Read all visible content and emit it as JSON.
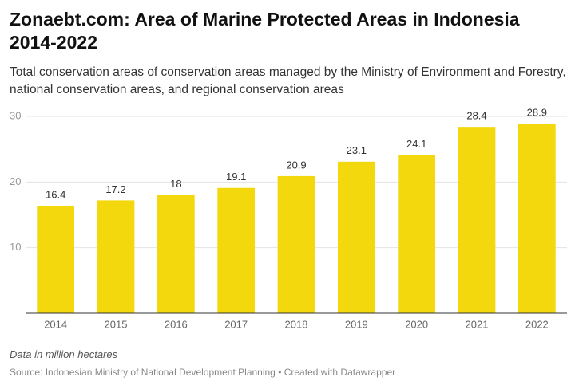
{
  "chart_data": {
    "type": "bar",
    "title": "Zonaebt.com: Area of Marine Protected Areas in Indonesia 2014-2022",
    "subtitle": "Total conservation areas of conservation areas managed by the Ministry of Environment and Forestry, national conservation areas, and regional conservation areas",
    "categories": [
      "2014",
      "2015",
      "2016",
      "2017",
      "2018",
      "2019",
      "2020",
      "2021",
      "2022"
    ],
    "values": [
      16.4,
      17.2,
      18,
      19.1,
      20.9,
      23.1,
      24.1,
      28.4,
      28.9
    ],
    "color": "#f2d80c",
    "ylim": [
      0,
      30
    ],
    "yticks": [
      10,
      20,
      30
    ],
    "grid": true,
    "note": "Data in million hectares",
    "source": "Source: Indonesian Ministry of National Development Planning • Created with Datawrapper"
  }
}
